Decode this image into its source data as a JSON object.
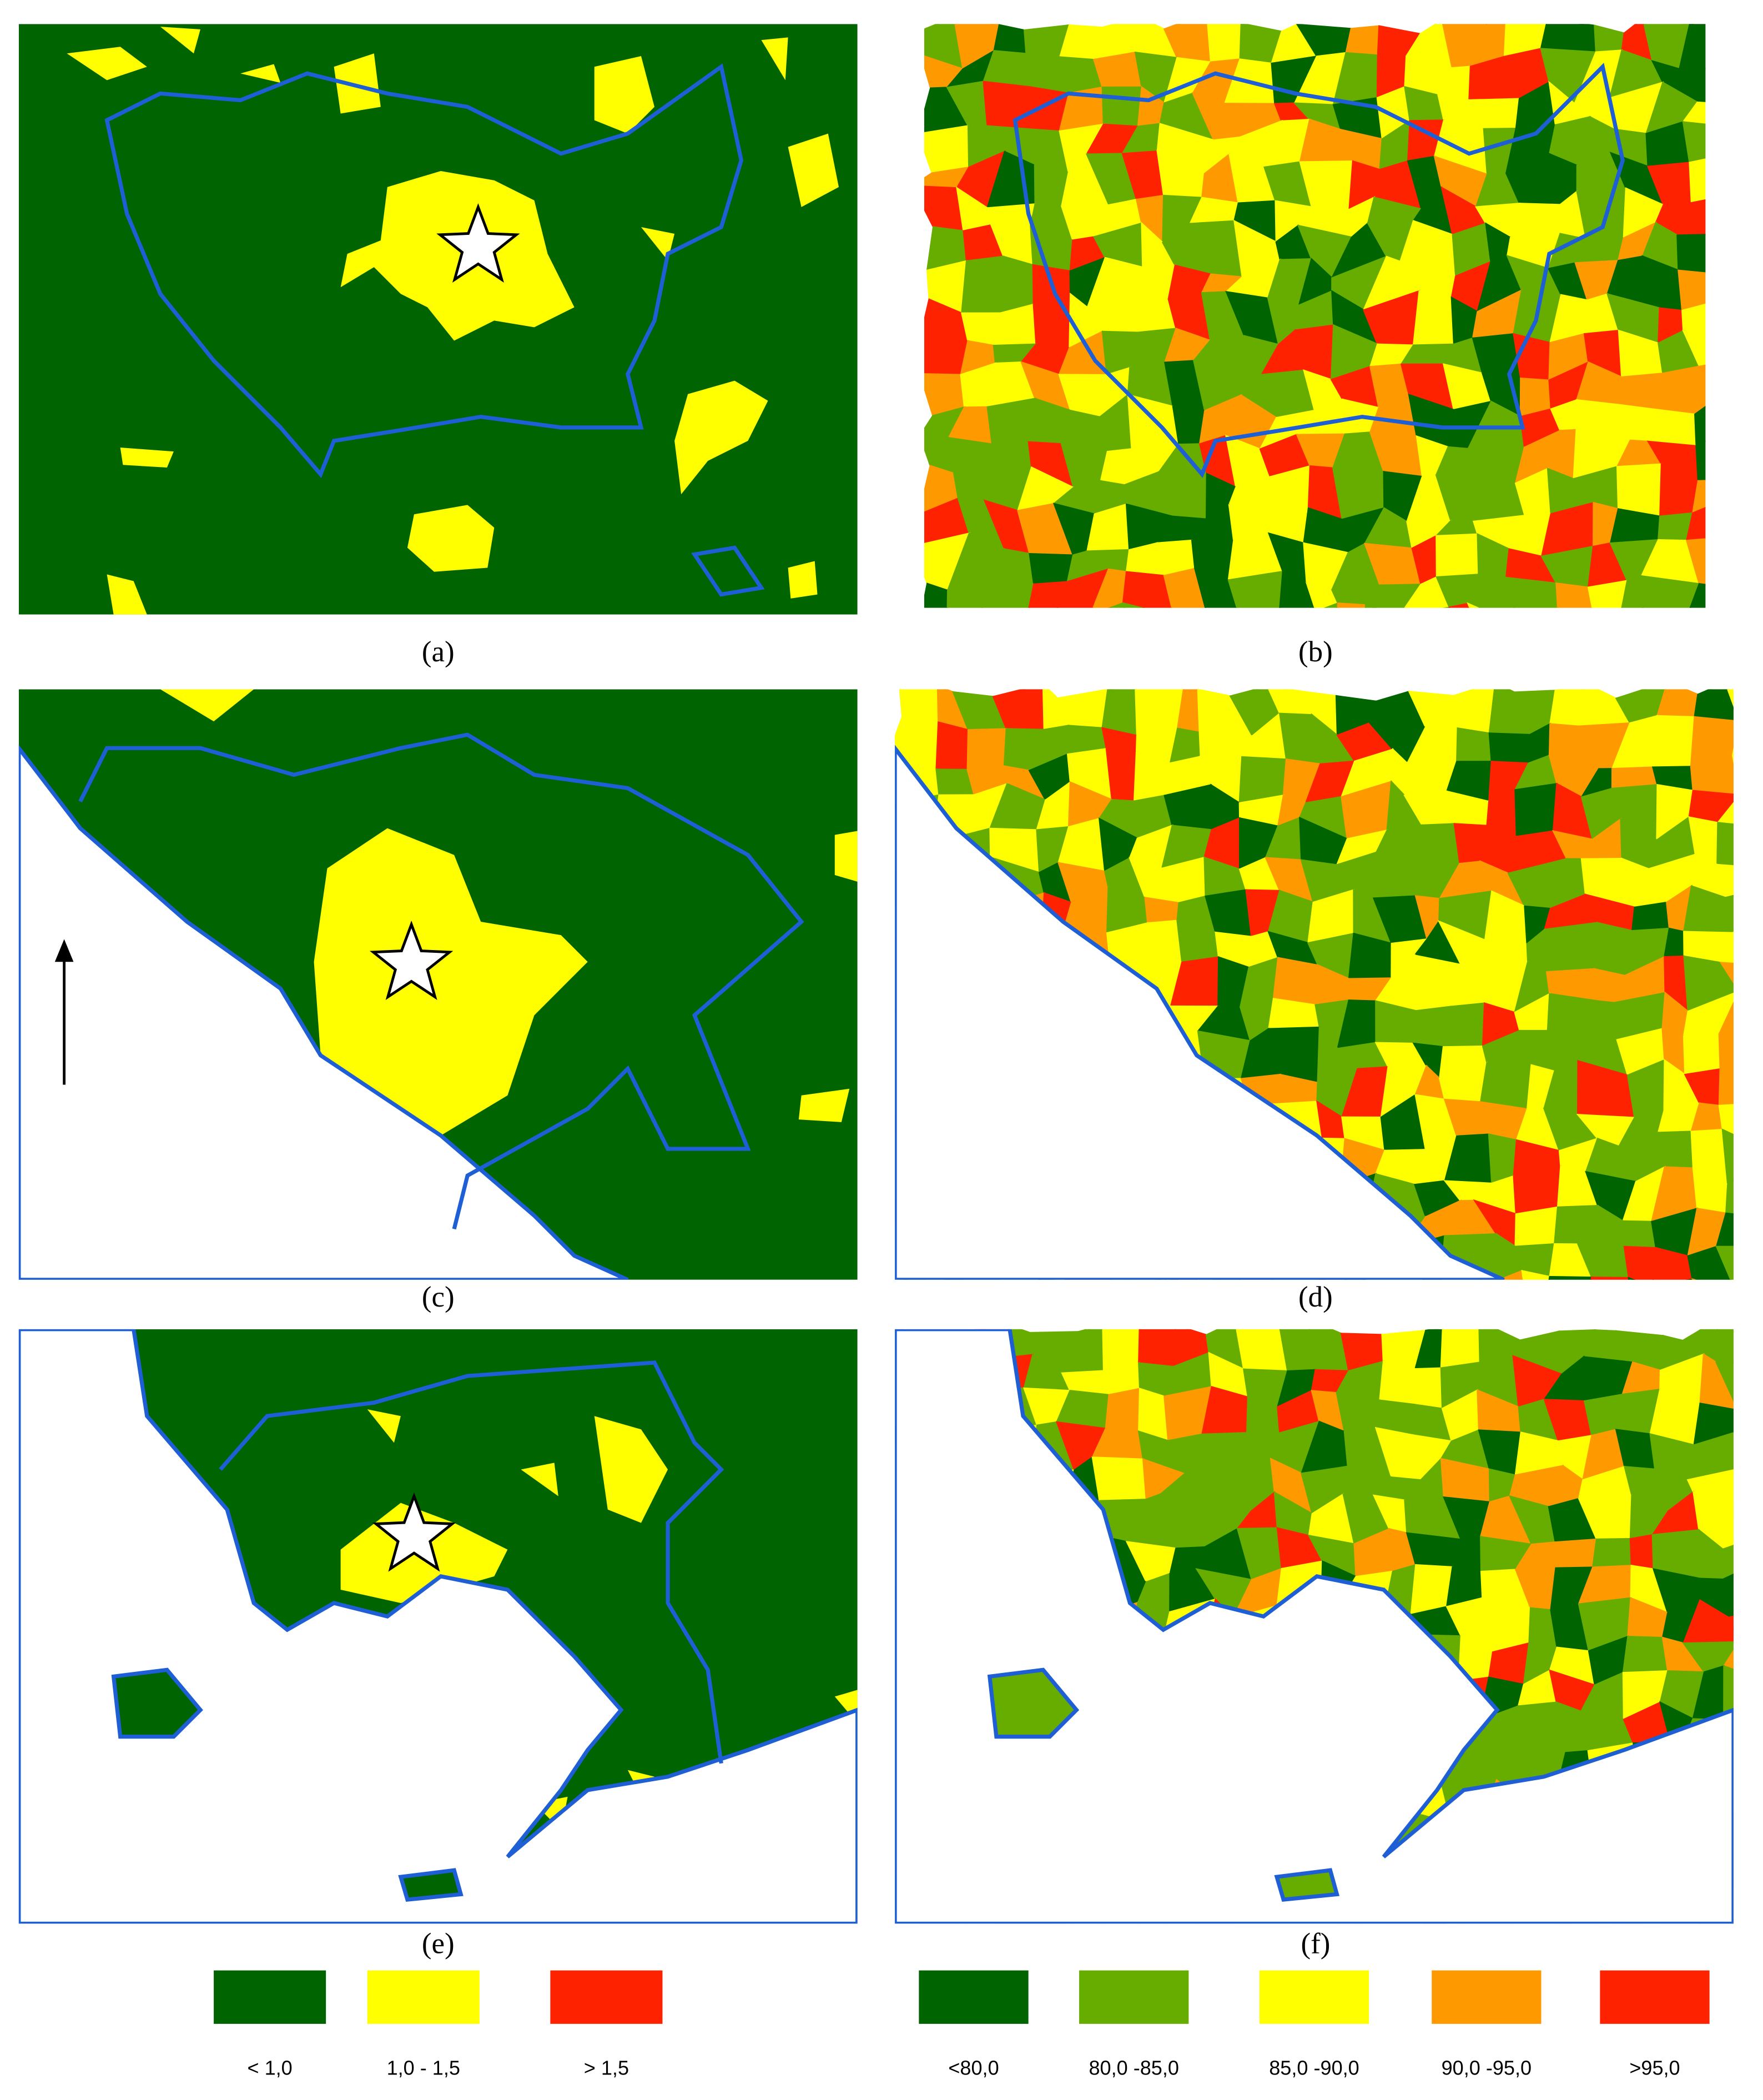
{
  "panels": [
    {
      "label": "(a)"
    },
    {
      "label": "(b)"
    },
    {
      "label": "(c)"
    },
    {
      "label": "(d)"
    },
    {
      "label": "(e)"
    },
    {
      "label": "(f)"
    }
  ],
  "legend_left": [
    {
      "label": "< 1,0",
      "color": "#006400"
    },
    {
      "label": "1,0 - 1,5",
      "color": "#ffff00"
    },
    {
      "label": "> 1,5",
      "color": "#ff2200"
    }
  ],
  "legend_right": [
    {
      "label": "<80,0",
      "color": "#006400"
    },
    {
      "label": "80,0 -85,0",
      "color": "#66ad00"
    },
    {
      "label": "85,0 -90,0",
      "color": "#ffff00"
    },
    {
      "label": "90,0 -95,0",
      "color": "#ff9900"
    },
    {
      "label": ">95,0",
      "color": "#ff2200"
    }
  ]
}
